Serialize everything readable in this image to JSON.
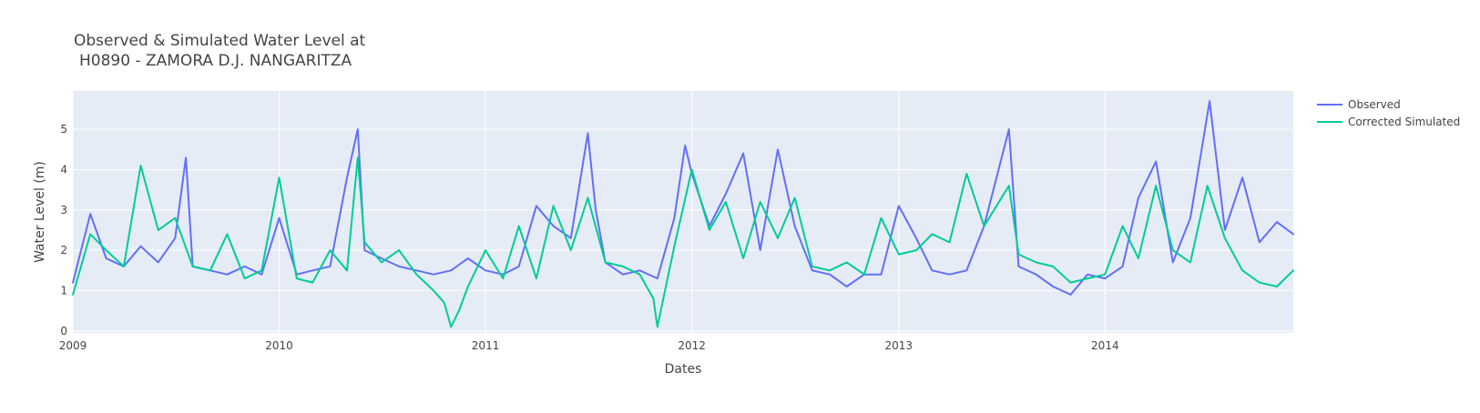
{
  "chart_data": {
    "type": "line",
    "title_lines": [
      "Observed & Simulated Water Level at",
      "H0890 - ZAMORA D.J. NANGARITZA"
    ],
    "xlabel": "Dates",
    "ylabel": "Water Level (m)",
    "x_range": [
      "2009-01-01",
      "2014-11-30"
    ],
    "ylim": [
      -0.05,
      5.95
    ],
    "x_ticks": [
      "2009",
      "2010",
      "2011",
      "2012",
      "2013",
      "2014"
    ],
    "y_ticks": [
      "0",
      "1",
      "2",
      "3",
      "4",
      "5"
    ],
    "grid": true,
    "legend": "top-right",
    "series": [
      {
        "name": "Observed",
        "color": "#636efa",
        "x": [
          "2009-01-01",
          "2009-02-01",
          "2009-03-01",
          "2009-04-01",
          "2009-05-01",
          "2009-06-01",
          "2009-07-01",
          "2009-07-20",
          "2009-08-01",
          "2009-09-01",
          "2009-10-01",
          "2009-11-01",
          "2009-12-01",
          "2010-01-01",
          "2010-02-01",
          "2010-03-01",
          "2010-04-01",
          "2010-05-01",
          "2010-05-20",
          "2010-06-01",
          "2010-07-01",
          "2010-08-01",
          "2010-09-01",
          "2010-10-01",
          "2010-11-01",
          "2010-12-01",
          "2011-01-01",
          "2011-02-01",
          "2011-03-01",
          "2011-04-01",
          "2011-05-01",
          "2011-06-01",
          "2011-07-01",
          "2011-07-15",
          "2011-08-01",
          "2011-09-01",
          "2011-10-01",
          "2011-11-01",
          "2011-12-01",
          "2011-12-20",
          "2012-01-01",
          "2012-02-01",
          "2012-03-01",
          "2012-04-01",
          "2012-05-01",
          "2012-06-01",
          "2012-07-01",
          "2012-08-01",
          "2012-09-01",
          "2012-10-01",
          "2012-11-01",
          "2012-12-01",
          "2013-01-01",
          "2013-02-01",
          "2013-03-01",
          "2013-04-01",
          "2013-05-01",
          "2013-06-01",
          "2013-07-15",
          "2013-08-01",
          "2013-09-01",
          "2013-10-01",
          "2013-11-01",
          "2013-12-01",
          "2014-01-01",
          "2014-02-01",
          "2014-03-01",
          "2014-04-01",
          "2014-05-01",
          "2014-06-01",
          "2014-07-05",
          "2014-08-01",
          "2014-09-01",
          "2014-10-01",
          "2014-11-01",
          "2014-11-30"
        ],
        "y": [
          1.2,
          2.9,
          1.8,
          1.6,
          2.1,
          1.7,
          2.3,
          4.3,
          1.6,
          1.5,
          1.4,
          1.6,
          1.4,
          2.8,
          1.4,
          1.5,
          1.6,
          3.8,
          5.0,
          2.0,
          1.8,
          1.6,
          1.5,
          1.4,
          1.5,
          1.8,
          1.5,
          1.4,
          1.6,
          3.1,
          2.6,
          2.3,
          4.9,
          3.0,
          1.7,
          1.4,
          1.5,
          1.3,
          2.8,
          4.6,
          3.9,
          2.6,
          3.4,
          4.4,
          2.0,
          4.5,
          2.6,
          1.5,
          1.4,
          1.1,
          1.4,
          1.4,
          3.1,
          2.3,
          1.5,
          1.4,
          1.5,
          2.6,
          5.0,
          1.6,
          1.4,
          1.1,
          0.9,
          1.4,
          1.3,
          1.6,
          3.3,
          4.2,
          1.7,
          2.8,
          5.7,
          2.5,
          3.8,
          2.2,
          2.7,
          2.4
        ]
      },
      {
        "name": "Corrected Simulated",
        "color": "#00cc96",
        "x": [
          "2009-01-01",
          "2009-02-01",
          "2009-03-01",
          "2009-04-01",
          "2009-05-01",
          "2009-06-01",
          "2009-07-01",
          "2009-08-01",
          "2009-09-01",
          "2009-10-01",
          "2009-11-01",
          "2009-12-01",
          "2010-01-01",
          "2010-02-01",
          "2010-03-01",
          "2010-04-01",
          "2010-05-01",
          "2010-05-20",
          "2010-06-01",
          "2010-07-01",
          "2010-08-01",
          "2010-09-01",
          "2010-10-01",
          "2010-10-20",
          "2010-11-01",
          "2010-11-15",
          "2010-12-01",
          "2011-01-01",
          "2011-02-01",
          "2011-03-01",
          "2011-04-01",
          "2011-05-01",
          "2011-06-01",
          "2011-07-01",
          "2011-08-01",
          "2011-09-01",
          "2011-10-01",
          "2011-10-25",
          "2011-11-01",
          "2011-12-01",
          "2012-01-01",
          "2012-02-01",
          "2012-03-01",
          "2012-04-01",
          "2012-05-01",
          "2012-06-01",
          "2012-07-01",
          "2012-08-01",
          "2012-09-01",
          "2012-10-01",
          "2012-11-01",
          "2012-12-01",
          "2013-01-01",
          "2013-02-01",
          "2013-03-01",
          "2013-04-01",
          "2013-05-01",
          "2013-06-01",
          "2013-07-15",
          "2013-08-01",
          "2013-09-01",
          "2013-10-01",
          "2013-11-01",
          "2013-12-01",
          "2014-01-01",
          "2014-02-01",
          "2014-03-01",
          "2014-04-01",
          "2014-05-01",
          "2014-06-01",
          "2014-07-01",
          "2014-08-01",
          "2014-09-01",
          "2014-10-01",
          "2014-11-01",
          "2014-11-30"
        ],
        "y": [
          0.9,
          2.4,
          2.0,
          1.6,
          4.1,
          2.5,
          2.8,
          1.6,
          1.5,
          2.4,
          1.3,
          1.5,
          3.8,
          1.3,
          1.2,
          2.0,
          1.5,
          4.3,
          2.2,
          1.7,
          2.0,
          1.4,
          1.0,
          0.7,
          0.1,
          0.5,
          1.1,
          2.0,
          1.3,
          2.6,
          1.3,
          3.1,
          2.0,
          3.3,
          1.7,
          1.6,
          1.4,
          0.8,
          0.1,
          2.1,
          4.0,
          2.5,
          3.2,
          1.8,
          3.2,
          2.3,
          3.3,
          1.6,
          1.5,
          1.7,
          1.4,
          2.8,
          1.9,
          2.0,
          2.4,
          2.2,
          3.9,
          2.6,
          3.6,
          1.9,
          1.7,
          1.6,
          1.2,
          1.3,
          1.4,
          2.6,
          1.8,
          3.6,
          2.0,
          1.7,
          3.6,
          2.3,
          1.5,
          1.2,
          1.1,
          1.5
        ]
      }
    ]
  }
}
